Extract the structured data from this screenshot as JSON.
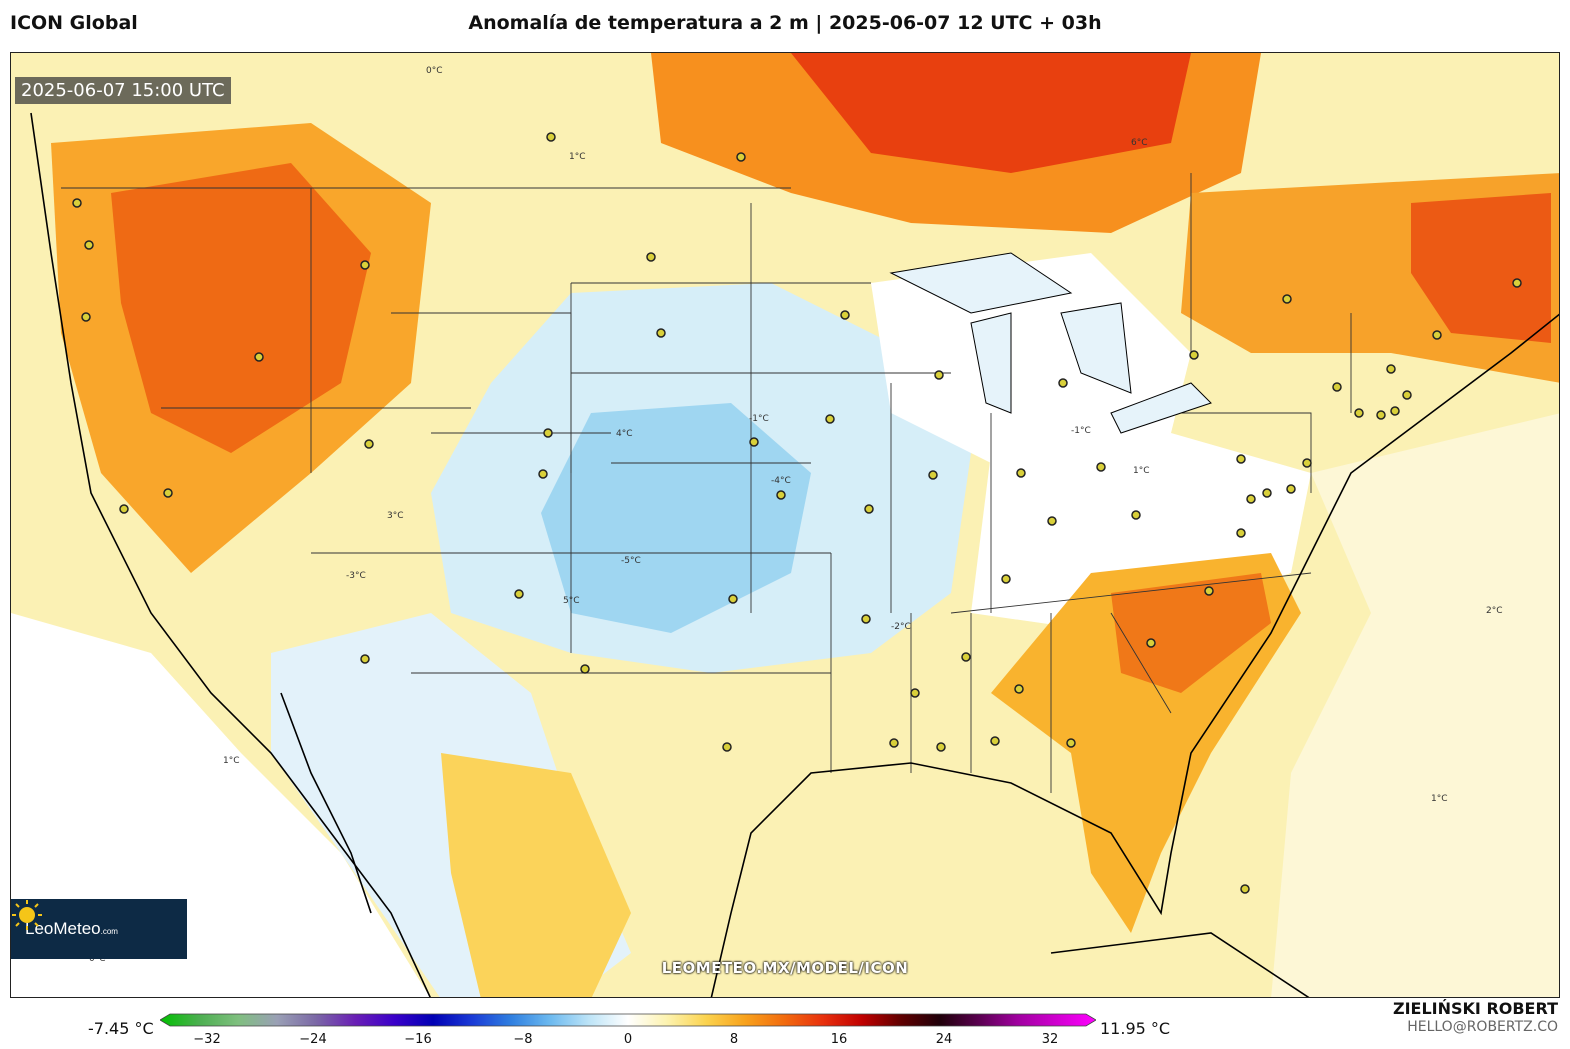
{
  "header": {
    "model": "ICON Global",
    "title": "Anomalía de temperatura a 2 m | 2025-06-07 12 UTC + 03h"
  },
  "map": {
    "valid_time": "2025-06-07 15:00 UTC",
    "watermark": "LEOMETEO.MX/MODEL/ICON",
    "logo": {
      "name": "LeoMeteo",
      "domain": ".com"
    },
    "contour_labels": [
      "0°C",
      "1°C",
      "-1°C",
      "2°C",
      "3°C",
      "4°C",
      "5°C",
      "6°C",
      "-2°C",
      "-3°C",
      "-4°C",
      "-5°C"
    ]
  },
  "colorbar": {
    "min_label": "-7.45 °C",
    "max_label": "11.95 °C",
    "ticks": [
      "−32",
      "−24",
      "−16",
      "−8",
      "0",
      "8",
      "16",
      "24",
      "32"
    ],
    "colors": [
      "#00c000",
      "#4caf50",
      "#7fbf7f",
      "#9aa0b5",
      "#7b68a6",
      "#6a1fb5",
      "#3b00c9",
      "#0000b4",
      "#1a3ad6",
      "#2f7fe0",
      "#6cb9ef",
      "#bde4f7",
      "#ffffff",
      "#fdf3b0",
      "#fbd34f",
      "#f8a21c",
      "#f26b0e",
      "#e8300d",
      "#c00000",
      "#600000",
      "#20000a",
      "#5a0050",
      "#a000a0",
      "#d000d0",
      "#ff00ff"
    ]
  },
  "author": {
    "name": "ZIELIŃSKI ROBERT",
    "email": "HELLO@ROBERTZ.CO"
  }
}
